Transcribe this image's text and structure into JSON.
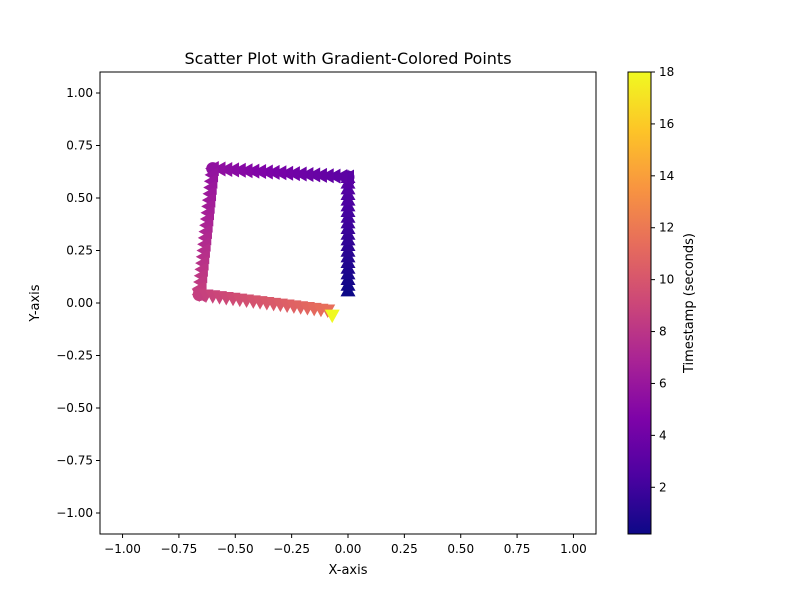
{
  "chart_data": {
    "type": "scatter",
    "title": "Scatter Plot with Gradient-Colored Points",
    "xlabel": "X-axis",
    "ylabel": "Y-axis",
    "xlim": [
      -1.1,
      1.1
    ],
    "ylim": [
      -1.1,
      1.1
    ],
    "xticks": [
      -1.0,
      -0.75,
      -0.5,
      -0.25,
      0.0,
      0.25,
      0.5,
      0.75,
      1.0
    ],
    "xtick_labels": [
      "−1.00",
      "−0.75",
      "−0.50",
      "−0.25",
      "0.00",
      "0.25",
      "0.50",
      "0.75",
      "1.00"
    ],
    "yticks": [
      1.0,
      0.75,
      0.5,
      0.25,
      0.0,
      -0.25,
      -0.5,
      -0.75,
      -1.0
    ],
    "ytick_labels": [
      "1.00",
      "0.75",
      "0.50",
      "0.25",
      "0.00",
      "−0.25",
      "−0.50",
      "−0.75",
      "−1.00"
    ],
    "grid": false,
    "colormap": "plasma",
    "colorbar": {
      "label": "Timestamp (seconds)",
      "range": [
        0.2,
        18
      ],
      "ticks": [
        2,
        4,
        6,
        8,
        10,
        12,
        14,
        16,
        18
      ],
      "tick_labels": [
        "2",
        "4",
        "6",
        "8",
        "10",
        "12",
        "14",
        "16",
        "18"
      ]
    },
    "segments": [
      {
        "marker": "triangle-up",
        "x": [
          0.0,
          0.0,
          0.0,
          0.0,
          0.0,
          0.0,
          0.0,
          0.0,
          0.0,
          0.0,
          0.0,
          0.0,
          0.0,
          0.0,
          0.0,
          0.0,
          0.0,
          0.0,
          0.0,
          0.0,
          0.0
        ],
        "y": [
          0.06,
          0.087,
          0.114,
          0.141,
          0.168,
          0.195,
          0.222,
          0.249,
          0.276,
          0.303,
          0.33,
          0.357,
          0.384,
          0.411,
          0.438,
          0.465,
          0.492,
          0.519,
          0.546,
          0.573,
          0.6
        ],
        "t": [
          0.2,
          0.34,
          0.48,
          0.62,
          0.76,
          0.9,
          1.04,
          1.18,
          1.32,
          1.46,
          1.6,
          1.74,
          1.88,
          2.02,
          2.16,
          2.3,
          2.44,
          2.58,
          2.72,
          2.86,
          3.0
        ]
      },
      {
        "marker": "circle",
        "x": [
          0.0
        ],
        "y": [
          0.6
        ],
        "t": [
          3.0
        ]
      },
      {
        "marker": "triangle-left",
        "x": [
          0.0,
          -0.03,
          -0.06,
          -0.09,
          -0.12,
          -0.15,
          -0.18,
          -0.21,
          -0.24,
          -0.27,
          -0.3,
          -0.33,
          -0.36,
          -0.39,
          -0.42,
          -0.45,
          -0.48,
          -0.51,
          -0.54,
          -0.57,
          -0.6
        ],
        "y": [
          0.6,
          0.602,
          0.604,
          0.606,
          0.608,
          0.61,
          0.612,
          0.614,
          0.616,
          0.618,
          0.62,
          0.622,
          0.624,
          0.626,
          0.628,
          0.63,
          0.632,
          0.634,
          0.636,
          0.638,
          0.64
        ],
        "t": [
          3.0,
          3.13,
          3.26,
          3.39,
          3.52,
          3.65,
          3.78,
          3.91,
          4.04,
          4.17,
          4.3,
          4.43,
          4.56,
          4.69,
          4.82,
          4.95,
          5.08,
          5.21,
          5.34,
          5.47,
          5.6
        ]
      },
      {
        "marker": "circle",
        "x": [
          -0.6
        ],
        "y": [
          0.64
        ],
        "t": [
          5.6
        ]
      },
      {
        "marker": "triangle-left",
        "x": [
          -0.6,
          -0.603,
          -0.606,
          -0.609,
          -0.612,
          -0.615,
          -0.618,
          -0.621,
          -0.624,
          -0.627,
          -0.63,
          -0.633,
          -0.636,
          -0.639,
          -0.642,
          -0.645,
          -0.648,
          -0.651,
          -0.654,
          -0.657,
          -0.66
        ],
        "y": [
          0.64,
          0.61,
          0.58,
          0.55,
          0.52,
          0.49,
          0.46,
          0.43,
          0.4,
          0.37,
          0.34,
          0.31,
          0.28,
          0.25,
          0.22,
          0.19,
          0.16,
          0.13,
          0.1,
          0.07,
          0.04
        ],
        "t": [
          5.6,
          5.75,
          5.9,
          6.05,
          6.2,
          6.35,
          6.5,
          6.65,
          6.8,
          6.95,
          7.1,
          7.25,
          7.4,
          7.55,
          7.7,
          7.85,
          8.0,
          8.15,
          8.3,
          8.45,
          8.6
        ]
      },
      {
        "marker": "circle",
        "x": [
          -0.66
        ],
        "y": [
          0.04
        ],
        "t": [
          8.6
        ]
      },
      {
        "marker": "triangle-down",
        "x": [
          -0.66,
          -0.63,
          -0.6,
          -0.57,
          -0.54,
          -0.51,
          -0.48,
          -0.45,
          -0.42,
          -0.39,
          -0.36,
          -0.33,
          -0.3,
          -0.27,
          -0.24,
          -0.21,
          -0.18,
          -0.15,
          -0.12,
          -0.09
        ],
        "y": [
          0.04,
          0.036,
          0.032,
          0.028,
          0.024,
          0.02,
          0.016,
          0.012,
          0.008,
          0.004,
          0.0,
          -0.004,
          -0.008,
          -0.012,
          -0.016,
          -0.02,
          -0.024,
          -0.028,
          -0.032,
          -0.036
        ],
        "t": [
          8.6,
          8.75,
          8.9,
          9.05,
          9.2,
          9.35,
          9.5,
          9.65,
          9.8,
          9.95,
          10.1,
          10.25,
          10.4,
          10.55,
          10.7,
          10.85,
          11.0,
          11.15,
          11.3,
          11.45
        ]
      },
      {
        "marker": "triangle-down",
        "x": [
          -0.07
        ],
        "y": [
          -0.06
        ],
        "t": [
          18.0
        ]
      }
    ]
  }
}
